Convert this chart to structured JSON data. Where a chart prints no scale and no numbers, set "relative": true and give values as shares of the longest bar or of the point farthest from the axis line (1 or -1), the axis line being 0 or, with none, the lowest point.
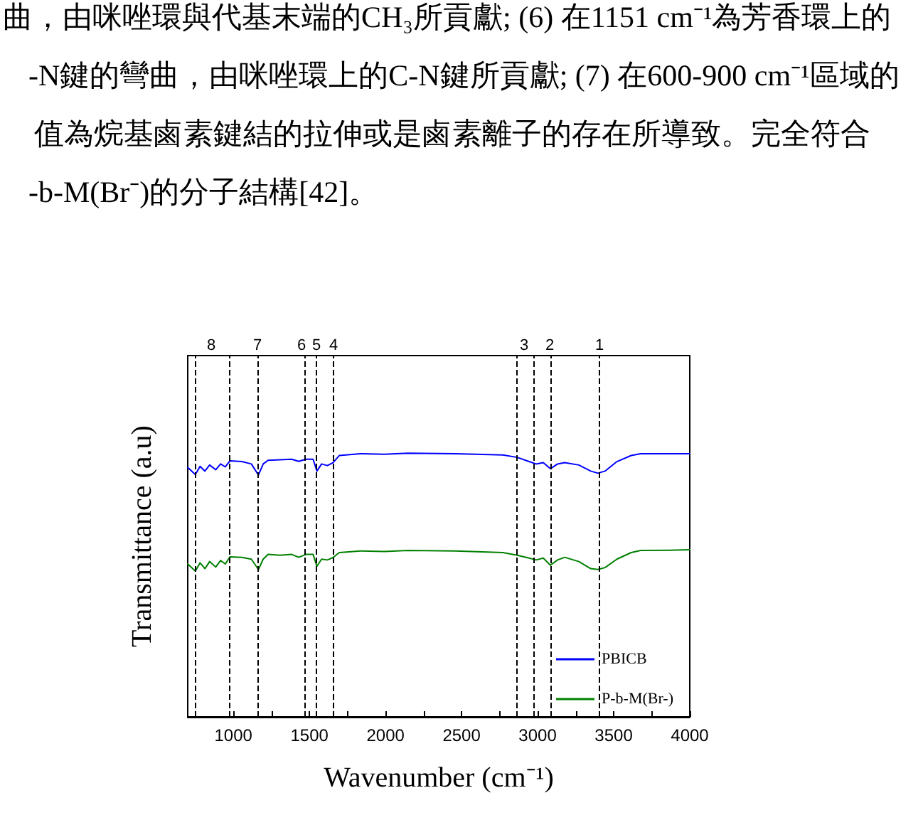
{
  "chart_data": {
    "type": "line",
    "xlabel": "Wavenumber (cm⁻¹)",
    "ylabel": "Transmittance (a.u)",
    "relative": true,
    "xlim": [
      700,
      4000
    ],
    "xticks": [
      {
        "value": 750,
        "label": null
      },
      1000,
      {
        "value": 1250,
        "label": null
      },
      1500,
      {
        "value": 1750,
        "label": null
      },
      2000,
      {
        "value": 2250,
        "label": null
      },
      2500,
      {
        "value": 2750,
        "label": null
      },
      3000,
      {
        "value": 3250,
        "label": null
      },
      3500,
      {
        "value": 3750,
        "label": null
      },
      4000
    ],
    "x": [
      700,
      750,
      781,
      813,
      844,
      884,
      916,
      947,
      978,
      1056,
      1118,
      1165,
      1196,
      1228,
      1306,
      1384,
      1430,
      1477,
      1524,
      1549,
      1580,
      1618,
      1655,
      1696,
      1836,
      1992,
      2148,
      2460,
      2772,
      2866,
      2944,
      2990,
      3037,
      3084,
      3131,
      3178,
      3271,
      3349,
      3396,
      3443,
      3521,
      3615,
      3677,
      3864,
      4000
    ],
    "series": [
      {
        "name": "PBICB",
        "color": "#0000ff",
        "values": [
          0.946,
          0.919,
          0.95,
          0.932,
          0.955,
          0.937,
          0.959,
          0.948,
          0.971,
          0.968,
          0.959,
          0.917,
          0.959,
          0.973,
          0.975,
          0.977,
          0.969,
          0.977,
          0.977,
          0.932,
          0.959,
          0.953,
          0.964,
          0.991,
          0.998,
          0.996,
          1.0,
          0.998,
          0.993,
          0.984,
          0.968,
          0.959,
          0.964,
          0.941,
          0.959,
          0.964,
          0.955,
          0.932,
          0.924,
          0.932,
          0.968,
          0.991,
          0.998,
          0.998,
          0.998
        ]
      },
      {
        "name": "P-b-M(Br-)",
        "color": "#008000",
        "values": [
          0.58,
          0.553,
          0.584,
          0.562,
          0.589,
          0.568,
          0.593,
          0.58,
          0.607,
          0.605,
          0.598,
          0.559,
          0.598,
          0.616,
          0.613,
          0.616,
          0.605,
          0.616,
          0.616,
          0.571,
          0.598,
          0.595,
          0.604,
          0.623,
          0.629,
          0.627,
          0.631,
          0.629,
          0.623,
          0.613,
          0.602,
          0.595,
          0.602,
          0.575,
          0.595,
          0.605,
          0.589,
          0.562,
          0.559,
          0.566,
          0.598,
          0.623,
          0.631,
          0.632,
          0.634
        ]
      }
    ],
    "marker": "none",
    "legend": "bottom right",
    "ref_lines": [
      {
        "axis": "x",
        "value": 750,
        "color": "#000000",
        "line_style": "dashed"
      },
      {
        "axis": "x",
        "value": 978,
        "color": "#000000",
        "line_style": "dashed"
      },
      {
        "axis": "x",
        "value": 1165,
        "color": "#000000",
        "line_style": "dashed"
      },
      {
        "axis": "x",
        "value": 1465,
        "color": "#000000",
        "line_style": "dashed"
      },
      {
        "axis": "x",
        "value": 1546,
        "color": "#000000",
        "line_style": "dashed"
      },
      {
        "axis": "x",
        "value": 1655,
        "color": "#000000",
        "line_style": "dashed"
      },
      {
        "axis": "x",
        "value": 2866,
        "color": "#000000",
        "line_style": "dashed"
      },
      {
        "axis": "x",
        "value": 2978,
        "color": "#000000",
        "line_style": "dashed"
      },
      {
        "axis": "x",
        "value": 3084,
        "color": "#000000",
        "line_style": "dashed"
      },
      {
        "axis": "x",
        "value": 3408,
        "color": "#000000",
        "line_style": "dashed"
      }
    ],
    "annotations": [
      "曲，由咪唑環與代基末端的CH₃所貢獻; (6) 在1151 cm⁻¹為芳香環上的",
      "-N鍵的彎曲，由咪唑環上的C-N鍵所貢獻; (7) 在600-900 cm⁻¹區域的",
      "值為烷基鹵素鍵結的拉伸或是鹵素離子的存在所導致。完全符合",
      "-b-M(Br⁻)的分子結構[42]。",
      "8",
      "7",
      "6",
      "5",
      "4",
      "3",
      "2",
      "1"
    ]
  }
}
